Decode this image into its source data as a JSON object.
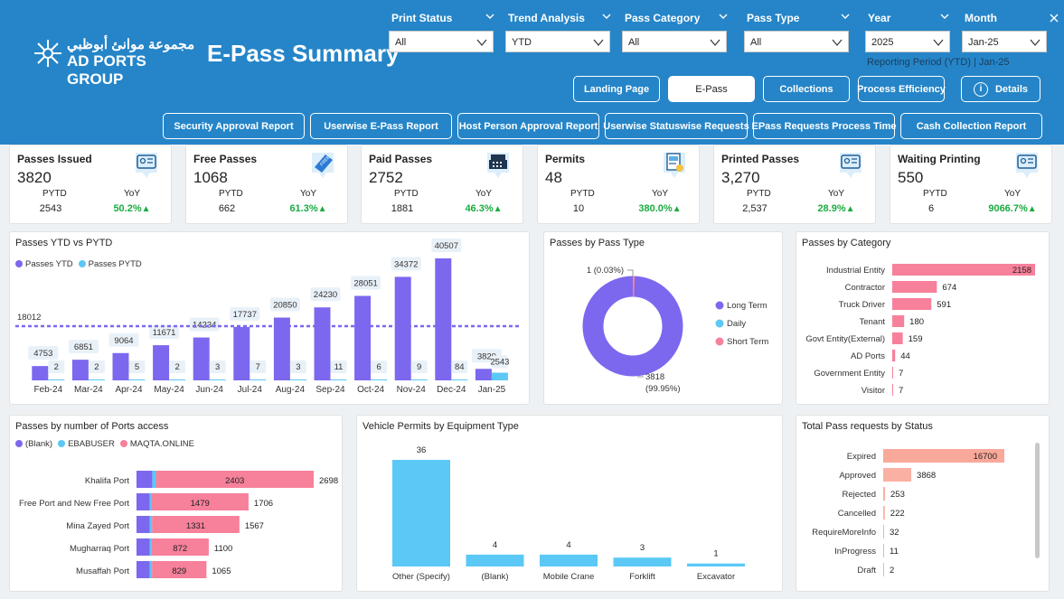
{
  "header": {
    "logo_arabic": "مجموعة موانئ أبوظبي",
    "logo_english": "AD PORTS GROUP",
    "title": "E-Pass Summary",
    "reporting_period": "Reporting Period (YTD) | Jan-25"
  },
  "filters": [
    {
      "label": "Print Status",
      "value": "All"
    },
    {
      "label": "Trend Analysis",
      "value": "YTD"
    },
    {
      "label": "Pass Category",
      "value": "All"
    },
    {
      "label": "Pass Type",
      "value": "All"
    },
    {
      "label": "Year",
      "value": "2025"
    },
    {
      "label": "Month",
      "value": "Jan-25"
    }
  ],
  "nav_top": [
    {
      "label": "Landing Page"
    },
    {
      "label": "E-Pass"
    },
    {
      "label": "Collections"
    },
    {
      "label": "Process Efficiency"
    },
    {
      "label": "Details"
    }
  ],
  "nav_reports": [
    {
      "label": "Security Approval Report"
    },
    {
      "label": "Userwise E-Pass Report"
    },
    {
      "label": "Host Person Approval Report"
    },
    {
      "label": "Userwise Statuswise Requests"
    },
    {
      "label": "EPass Requests Process Time"
    },
    {
      "label": "Cash Collection Report"
    }
  ],
  "kpis": [
    {
      "title": "Passes Issued",
      "value": "3820",
      "pytd_label": "PYTD",
      "yoy_label": "YoY",
      "pytd": "2543",
      "yoy": "50.2%",
      "icon": "id-card-icon"
    },
    {
      "title": "Free Passes",
      "value": "1068",
      "pytd_label": "PYTD",
      "yoy_label": "YoY",
      "pytd": "662",
      "yoy": "61.3%",
      "icon": "free-tag-icon"
    },
    {
      "title": "Paid Passes",
      "value": "2752",
      "pytd_label": "PYTD",
      "yoy_label": "YoY",
      "pytd": "1881",
      "yoy": "46.3%",
      "icon": "cash-register-icon"
    },
    {
      "title": "Permits",
      "value": "48",
      "pytd_label": "PYTD",
      "yoy_label": "YoY",
      "pytd": "10",
      "yoy": "380.0%",
      "icon": "permit-doc-icon"
    },
    {
      "title": "Printed Passes",
      "value": "3,270",
      "pytd_label": "PYTD",
      "yoy_label": "YoY",
      "pytd": "2,537",
      "yoy": "28.9%",
      "icon": "id-card-icon"
    },
    {
      "title": "Waiting Printing",
      "value": "550",
      "pytd_label": "PYTD",
      "yoy_label": "YoY",
      "pytd": "6",
      "yoy": "9066.7%",
      "icon": "id-card-icon"
    }
  ],
  "up_arrow": "▲",
  "colors": {
    "header": "#2585c8",
    "purple": "#7b68ee",
    "cyan": "#5bc8f5",
    "pink": "#f7809b",
    "salmon": "#f9a99a",
    "green": "#1aab40"
  },
  "chart_data": [
    {
      "type": "bar",
      "title": "Passes YTD vs PYTD",
      "categories": [
        "Feb-24",
        "Mar-24",
        "Apr-24",
        "May-24",
        "Jun-24",
        "Jul-24",
        "Aug-24",
        "Sep-24",
        "Oct-24",
        "Nov-24",
        "Dec-24",
        "Jan-25"
      ],
      "series": [
        {
          "name": "Passes YTD",
          "values": [
            4753,
            6851,
            9064,
            11671,
            14234,
            17737,
            20850,
            24230,
            28051,
            34372,
            40507,
            3820
          ]
        },
        {
          "name": "Passes PYTD",
          "values": [
            2,
            2,
            5,
            2,
            3,
            7,
            3,
            11,
            6,
            9,
            84,
            2543
          ]
        }
      ],
      "reference_line": 18012,
      "ylim": [
        0,
        45000
      ],
      "legend": "top-left"
    },
    {
      "type": "pie",
      "title": "Passes by Pass Type",
      "slices": [
        {
          "name": "Long Term",
          "value": 3818,
          "label": "3818\n(99.95%)"
        },
        {
          "name": "Daily",
          "value": 0,
          "label": ""
        },
        {
          "name": "Short Term",
          "value": 1,
          "label": "1 (0.03%)"
        }
      ],
      "legend": "right"
    },
    {
      "type": "bar",
      "title": "Passes by Category",
      "orientation": "horizontal",
      "categories": [
        "Industrial Entity",
        "Contractor",
        "Truck Driver",
        "Tenant",
        "Govt Entity(External)",
        "AD Ports",
        "Government Entity",
        "Visitor"
      ],
      "values": [
        2158,
        674,
        591,
        180,
        159,
        44,
        7,
        7
      ]
    },
    {
      "type": "bar",
      "title": "Passes by number of Ports access",
      "orientation": "horizontal",
      "stacked": true,
      "categories": [
        "Khalifa Port",
        "Free Port and New Free Port",
        "Mina Zayed Port",
        "Mugharraq Port",
        "Musaffah Port"
      ],
      "series": [
        {
          "name": "(Blank)",
          "values": [
            240,
            200,
            200,
            200,
            200
          ]
        },
        {
          "name": "EBABUSER",
          "values": [
            55,
            27,
            36,
            28,
            36
          ]
        },
        {
          "name": "MAQTA.ONLINE",
          "values": [
            2403,
            1479,
            1331,
            872,
            829
          ]
        }
      ],
      "totals": [
        2698,
        1706,
        1567,
        1100,
        1065
      ],
      "legend": "top-left"
    },
    {
      "type": "bar",
      "title": "Vehicle Permits by Equipment Type",
      "categories": [
        "Other (Specify)",
        "(Blank)",
        "Mobile Crane",
        "Forklift",
        "Excavator"
      ],
      "values": [
        36,
        4,
        4,
        3,
        1
      ]
    },
    {
      "type": "bar",
      "title": "Total Pass requests by Status",
      "orientation": "horizontal",
      "categories": [
        "Expired",
        "Approved",
        "Rejected",
        "Cancelled",
        "RequireMoreInfo",
        "InProgress",
        "Draft"
      ],
      "values": [
        16700,
        3868,
        253,
        222,
        32,
        11,
        2
      ]
    }
  ]
}
